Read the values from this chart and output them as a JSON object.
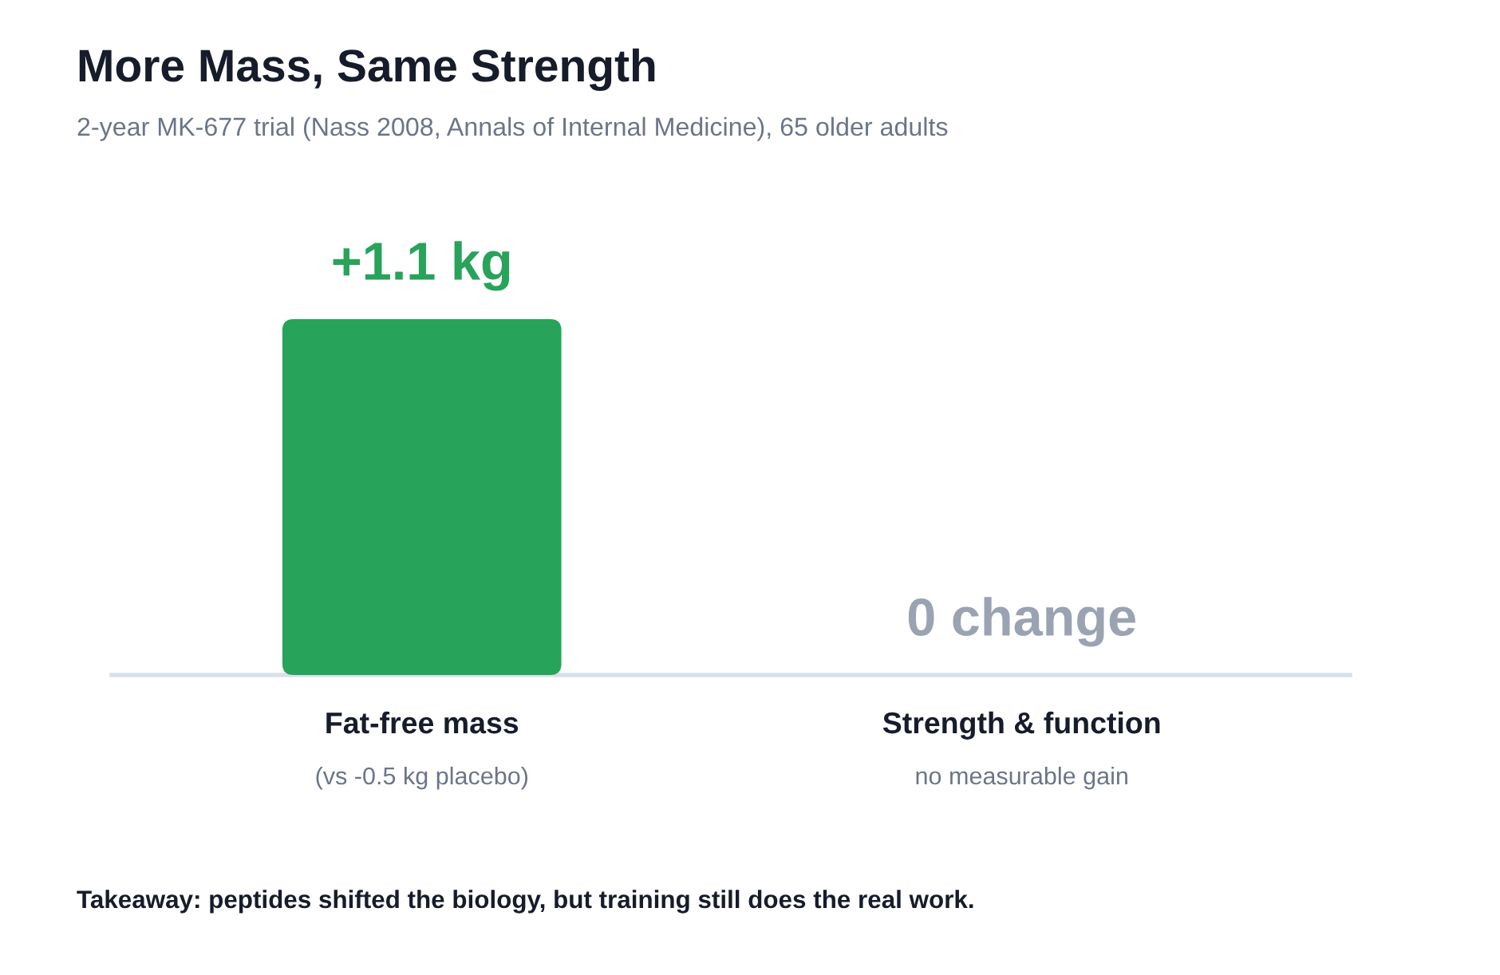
{
  "chart_data": {
    "type": "bar",
    "title": "More Mass, Same Strength",
    "subtitle": "2-year MK-677 trial (Nass 2008, Annals of Internal Medicine), 65 older adults",
    "categories": [
      "Fat-free mass",
      "Strength & function"
    ],
    "values": [
      1.1,
      0
    ],
    "colors": [
      "#27a35a",
      "#9aa3b1"
    ],
    "value_labels": [
      "+1.1 kg",
      "0 change"
    ],
    "ylim": [
      0,
      1.1
    ],
    "annotations": [
      "(vs -0.5 kg placebo)",
      "no measurable gain",
      "Takeaway: peptides shifted the biology, but training still does the real work."
    ]
  }
}
